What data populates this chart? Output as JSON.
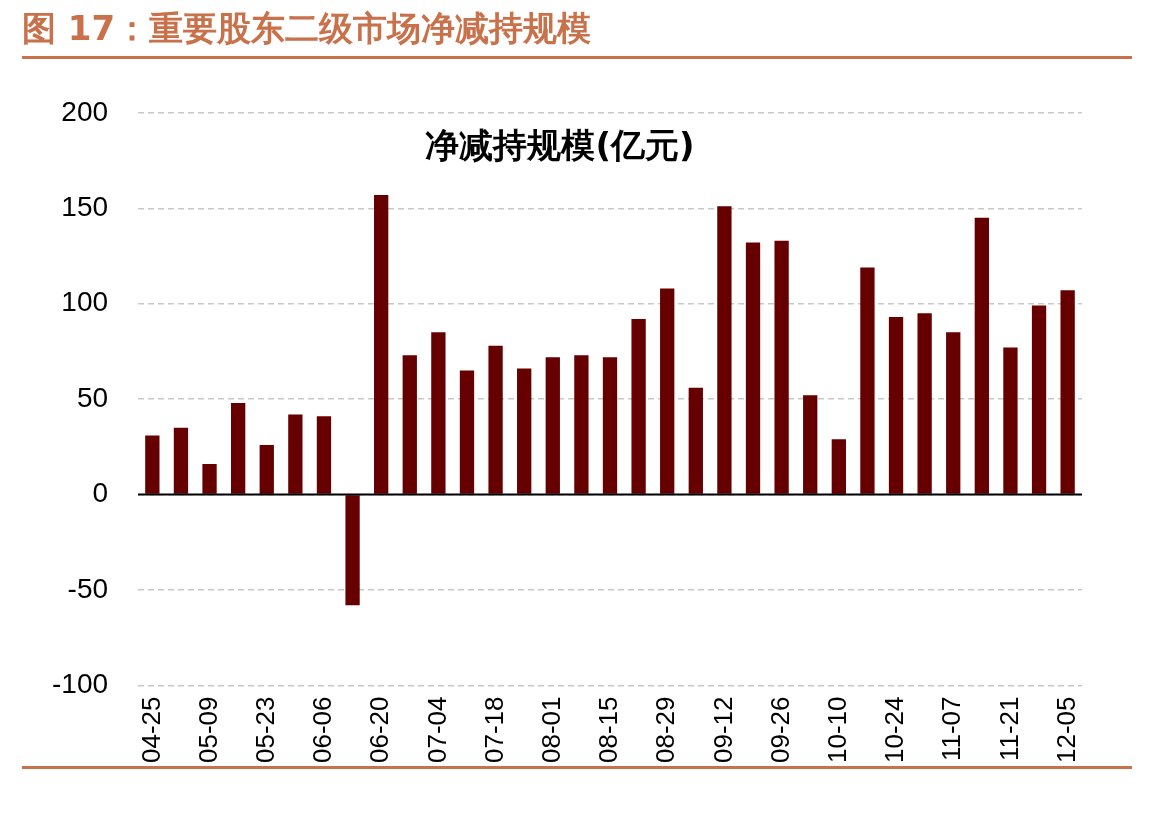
{
  "chart_data": {
    "type": "bar",
    "title": "图 17：重要股东二级市场净减持规模",
    "subtitle": "净减持规模(亿元)",
    "categories": [
      "04-25",
      null,
      "05-09",
      null,
      "05-23",
      null,
      "06-06",
      null,
      "06-20",
      null,
      "07-04",
      null,
      "07-18",
      null,
      "08-01",
      null,
      "08-15",
      null,
      "08-29",
      null,
      "09-12",
      null,
      "09-26",
      null,
      "10-10",
      null,
      "10-24",
      null,
      "11-07",
      null,
      "11-21",
      null,
      "12-05"
    ],
    "values": [
      31,
      35,
      16,
      48,
      26,
      42,
      41,
      -58,
      157,
      73,
      85,
      65,
      78,
      66,
      72,
      73,
      72,
      92,
      108,
      56,
      151,
      132,
      133,
      52,
      29,
      119,
      93,
      95,
      85,
      145,
      77,
      99,
      107
    ],
    "color": "#660000",
    "ylim": [
      -100,
      200
    ],
    "yticks": [
      -100,
      -50,
      0,
      50,
      100,
      150,
      200
    ],
    "grid": "y",
    "legend": false
  }
}
